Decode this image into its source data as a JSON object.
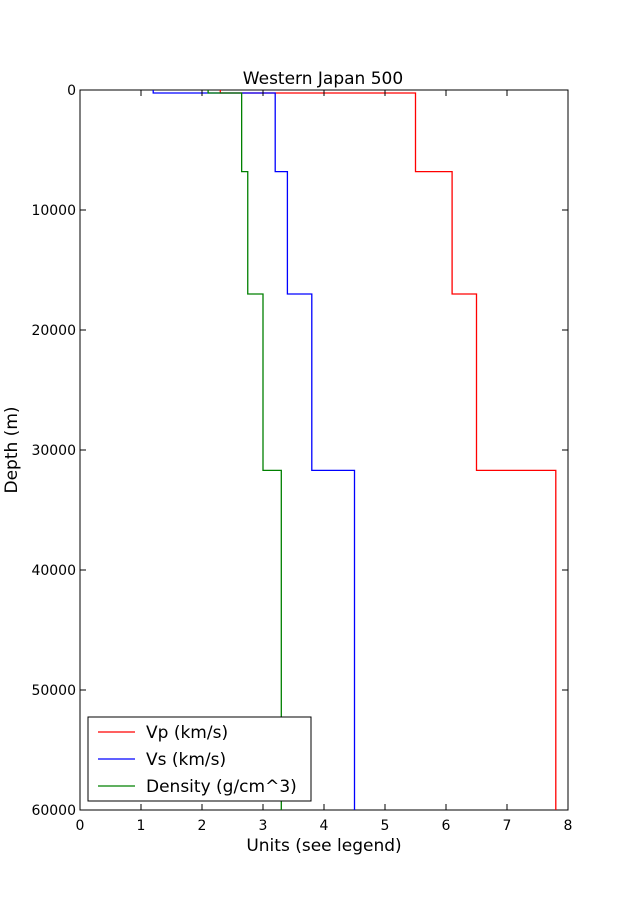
{
  "chart_data": {
    "type": "line",
    "title": "Western Japan 500",
    "xlabel": "Units (see legend)",
    "ylabel": "Depth (m)",
    "xlim": [
      0,
      8
    ],
    "ylim": [
      0,
      60000
    ],
    "y_inverted": true,
    "x_ticks": [
      "0",
      "1",
      "2",
      "3",
      "4",
      "5",
      "6",
      "7",
      "8"
    ],
    "y_ticks": [
      "0",
      "10000",
      "20000",
      "30000",
      "40000",
      "50000",
      "60000"
    ],
    "x_tick_values": [
      0,
      1,
      2,
      3,
      4,
      5,
      6,
      7,
      8
    ],
    "y_tick_values": [
      0,
      10000,
      20000,
      30000,
      40000,
      50000,
      60000
    ],
    "grid": false,
    "legend_position": "bottom-left",
    "series": [
      {
        "name": "Vp (km/s)",
        "color": "#ff0000",
        "step_layers": [
          {
            "top": 0,
            "value": 2.3
          },
          {
            "top": 250,
            "value": 5.5
          },
          {
            "top": 6800,
            "value": 6.1
          },
          {
            "top": 17000,
            "value": 6.5
          },
          {
            "top": 31700,
            "value": 7.8
          }
        ],
        "bottom": 60000
      },
      {
        "name": "Vs (km/s)",
        "color": "#0000ff",
        "step_layers": [
          {
            "top": 0,
            "value": 1.2
          },
          {
            "top": 250,
            "value": 3.2
          },
          {
            "top": 6800,
            "value": 3.4
          },
          {
            "top": 17000,
            "value": 3.8
          },
          {
            "top": 31700,
            "value": 4.5
          }
        ],
        "bottom": 60000
      },
      {
        "name": "Density (g/cm^3)",
        "color": "#008000",
        "step_layers": [
          {
            "top": 0,
            "value": 2.1
          },
          {
            "top": 250,
            "value": 2.65
          },
          {
            "top": 6800,
            "value": 2.75
          },
          {
            "top": 17000,
            "value": 3.0
          },
          {
            "top": 31700,
            "value": 3.3
          }
        ],
        "bottom": 60000
      }
    ]
  }
}
